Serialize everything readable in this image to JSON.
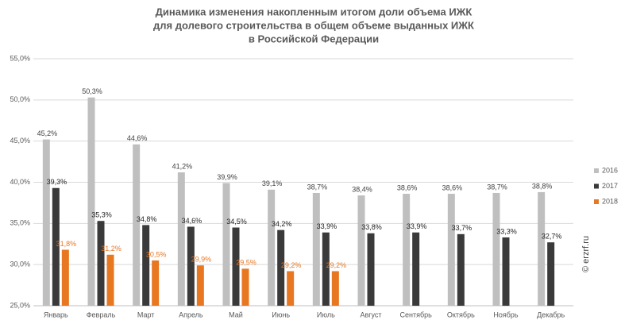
{
  "chart_data": {
    "type": "bar",
    "title": [
      "Динамика изменения накопленным итогом доли объема ИЖК",
      "для долевого строительства  в общем объеме выданных ИЖК",
      "в Российской  Федерации"
    ],
    "watermark": "© erzrf.ru",
    "categories": [
      "Январь",
      "Февраль",
      "Март",
      "Апрель",
      "Май",
      "Июнь",
      "Июль",
      "Август",
      "Сентябрь",
      "Октябрь",
      "Ноябрь",
      "Декабрь"
    ],
    "series": [
      {
        "name": "2016",
        "color": "#bfbfbf",
        "label_color": "#404040",
        "values": [
          45.2,
          50.3,
          44.6,
          41.2,
          39.9,
          39.1,
          38.7,
          38.4,
          38.6,
          38.6,
          38.7,
          38.8
        ],
        "value_labels": [
          "45,2%",
          "50,3%",
          "44,6%",
          "41,2%",
          "39,9%",
          "39,1%",
          "38,7%",
          "38,4%",
          "38,6%",
          "38,6%",
          "38,7%",
          "38,8%"
        ]
      },
      {
        "name": "2017",
        "color": "#3a3a3a",
        "label_color": "#222222",
        "values": [
          39.3,
          35.3,
          34.8,
          34.6,
          34.5,
          34.2,
          33.9,
          33.8,
          33.9,
          33.7,
          33.3,
          32.7
        ],
        "value_labels": [
          "39,3%",
          "35,3%",
          "34,8%",
          "34,6%",
          "34,5%",
          "34,2%",
          "33,9%",
          "33,8%",
          "33,9%",
          "33,7%",
          "33,3%",
          "32,7%"
        ]
      },
      {
        "name": "2018",
        "color": "#e87722",
        "label_color": "#e87722",
        "values": [
          31.8,
          31.2,
          30.5,
          29.9,
          29.5,
          29.2,
          29.2,
          null,
          null,
          null,
          null,
          null
        ],
        "value_labels": [
          "31,8%",
          "31,2%",
          "30,5%",
          "29,9%",
          "29,5%",
          "29,2%",
          "29,2%",
          null,
          null,
          null,
          null,
          null
        ]
      }
    ],
    "ylim": [
      25,
      55
    ],
    "yticks": [
      {
        "value": 25,
        "label": "25,0%"
      },
      {
        "value": 30,
        "label": "30,0%"
      },
      {
        "value": 35,
        "label": "35,0%"
      },
      {
        "value": 40,
        "label": "40,0%"
      },
      {
        "value": 45,
        "label": "45,0%"
      },
      {
        "value": 50,
        "label": "50,0%"
      },
      {
        "value": 55,
        "label": "55,0%"
      }
    ],
    "grid": true,
    "legend": "right"
  }
}
